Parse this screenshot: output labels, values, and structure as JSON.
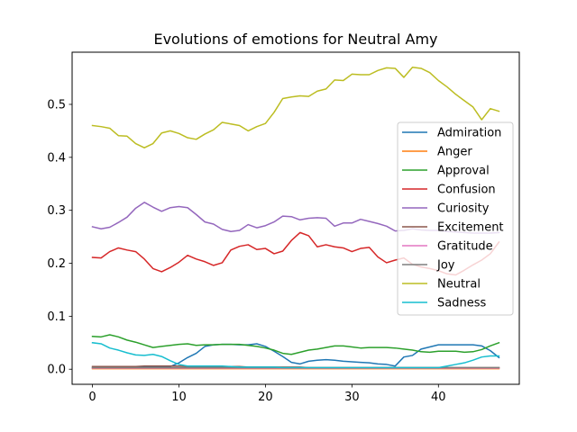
{
  "chart_data": {
    "type": "line",
    "title": "Evolutions of emotions for Neutral Amy",
    "xlabel": "",
    "ylabel": "",
    "xlim": [
      -2.35,
      49.35
    ],
    "ylim": [
      -0.0285,
      0.5985
    ],
    "xticks": [
      0,
      10,
      20,
      30,
      40
    ],
    "yticks": [
      0.0,
      0.1,
      0.2,
      0.3,
      0.4,
      0.5
    ],
    "ytick_labels": [
      "0.0",
      "0.1",
      "0.2",
      "0.3",
      "0.4",
      "0.5"
    ],
    "grid": false,
    "legend_position": "center-right",
    "x": [
      0,
      1,
      2,
      3,
      4,
      5,
      6,
      7,
      8,
      9,
      10,
      11,
      12,
      13,
      14,
      15,
      16,
      17,
      18,
      19,
      20,
      21,
      22,
      23,
      24,
      25,
      26,
      27,
      28,
      29,
      30,
      31,
      32,
      33,
      34,
      35,
      36,
      37,
      38,
      39,
      40,
      41,
      42,
      43,
      44,
      45,
      46,
      47
    ],
    "series": [
      {
        "name": "Admiration",
        "color": "#1f77b4",
        "values": [
          0.003,
          0.003,
          0.003,
          0.003,
          0.003,
          0.003,
          0.004,
          0.004,
          0.004,
          0.005,
          0.012,
          0.022,
          0.03,
          0.043,
          0.046,
          0.047,
          0.047,
          0.046,
          0.046,
          0.048,
          0.043,
          0.034,
          0.024,
          0.013,
          0.01,
          0.015,
          0.017,
          0.018,
          0.017,
          0.015,
          0.014,
          0.013,
          0.012,
          0.01,
          0.009,
          0.006,
          0.023,
          0.026,
          0.038,
          0.042,
          0.046,
          0.046,
          0.046,
          0.046,
          0.046,
          0.044,
          0.035,
          0.022
        ]
      },
      {
        "name": "Anger",
        "color": "#ff7f0e",
        "values": [
          0.001,
          0.001,
          0.001,
          0.001,
          0.001,
          0.001,
          0.001,
          0.001,
          0.001,
          0.001,
          0.001,
          0.001,
          0.001,
          0.001,
          0.001,
          0.001,
          0.001,
          0.001,
          0.001,
          0.001,
          0.001,
          0.001,
          0.001,
          0.001,
          0.001,
          0.001,
          0.001,
          0.001,
          0.001,
          0.001,
          0.001,
          0.001,
          0.001,
          0.001,
          0.001,
          0.001,
          0.001,
          0.001,
          0.001,
          0.001,
          0.001,
          0.001,
          0.001,
          0.001,
          0.001,
          0.001,
          0.001,
          0.001
        ]
      },
      {
        "name": "Approval",
        "color": "#2ca02c",
        "values": [
          0.062,
          0.061,
          0.065,
          0.061,
          0.055,
          0.051,
          0.046,
          0.041,
          0.043,
          0.045,
          0.047,
          0.048,
          0.045,
          0.046,
          0.046,
          0.047,
          0.047,
          0.047,
          0.045,
          0.043,
          0.04,
          0.036,
          0.03,
          0.028,
          0.032,
          0.036,
          0.038,
          0.041,
          0.044,
          0.044,
          0.042,
          0.04,
          0.041,
          0.041,
          0.041,
          0.04,
          0.038,
          0.036,
          0.033,
          0.032,
          0.034,
          0.034,
          0.034,
          0.032,
          0.033,
          0.037,
          0.044,
          0.05
        ]
      },
      {
        "name": "Confusion",
        "color": "#d62728",
        "values": [
          0.211,
          0.21,
          0.222,
          0.229,
          0.225,
          0.222,
          0.208,
          0.19,
          0.184,
          0.192,
          0.202,
          0.215,
          0.208,
          0.203,
          0.196,
          0.201,
          0.225,
          0.232,
          0.235,
          0.226,
          0.228,
          0.218,
          0.223,
          0.243,
          0.258,
          0.252,
          0.231,
          0.235,
          0.231,
          0.229,
          0.222,
          0.228,
          0.23,
          0.212,
          0.201,
          0.206,
          0.21,
          0.198,
          0.193,
          0.19,
          0.186,
          0.18,
          0.178,
          0.187,
          0.197,
          0.206,
          0.218,
          0.24
        ]
      },
      {
        "name": "Curiosity",
        "color": "#9467bd",
        "values": [
          0.269,
          0.265,
          0.268,
          0.277,
          0.287,
          0.304,
          0.315,
          0.306,
          0.298,
          0.305,
          0.307,
          0.305,
          0.292,
          0.278,
          0.274,
          0.264,
          0.26,
          0.262,
          0.273,
          0.267,
          0.271,
          0.278,
          0.289,
          0.288,
          0.282,
          0.285,
          0.286,
          0.285,
          0.27,
          0.276,
          0.276,
          0.283,
          0.279,
          0.275,
          0.27,
          0.261,
          0.262,
          0.265,
          0.263,
          0.262,
          0.262,
          0.26,
          0.259,
          0.258,
          0.257,
          0.257,
          0.257,
          0.258
        ]
      },
      {
        "name": "Excitement",
        "color": "#8c564b",
        "values": [
          0.005,
          0.005,
          0.005,
          0.005,
          0.005,
          0.005,
          0.006,
          0.006,
          0.006,
          0.006,
          0.006,
          0.005,
          0.005,
          0.005,
          0.005,
          0.005,
          0.005,
          0.005,
          0.004,
          0.004,
          0.004,
          0.004,
          0.004,
          0.004,
          0.004,
          0.003,
          0.003,
          0.003,
          0.003,
          0.003,
          0.003,
          0.003,
          0.003,
          0.003,
          0.003,
          0.003,
          0.003,
          0.003,
          0.003,
          0.003,
          0.003,
          0.003,
          0.003,
          0.003,
          0.003,
          0.003,
          0.003,
          0.003
        ]
      },
      {
        "name": "Gratitude",
        "color": "#e377c2",
        "values": [
          0.002,
          0.002,
          0.002,
          0.002,
          0.002,
          0.002,
          0.002,
          0.002,
          0.002,
          0.002,
          0.002,
          0.002,
          0.002,
          0.002,
          0.002,
          0.002,
          0.002,
          0.002,
          0.002,
          0.002,
          0.002,
          0.002,
          0.002,
          0.002,
          0.002,
          0.002,
          0.002,
          0.002,
          0.002,
          0.002,
          0.002,
          0.002,
          0.002,
          0.002,
          0.002,
          0.002,
          0.002,
          0.002,
          0.002,
          0.002,
          0.002,
          0.002,
          0.002,
          0.002,
          0.002,
          0.002,
          0.002,
          0.002
        ]
      },
      {
        "name": "Joy",
        "color": "#7f7f7f",
        "values": [
          0.003,
          0.003,
          0.003,
          0.003,
          0.003,
          0.003,
          0.003,
          0.003,
          0.003,
          0.003,
          0.003,
          0.003,
          0.003,
          0.003,
          0.003,
          0.003,
          0.003,
          0.003,
          0.003,
          0.003,
          0.003,
          0.003,
          0.003,
          0.003,
          0.003,
          0.003,
          0.003,
          0.003,
          0.003,
          0.003,
          0.003,
          0.003,
          0.003,
          0.003,
          0.003,
          0.003,
          0.003,
          0.003,
          0.003,
          0.003,
          0.003,
          0.003,
          0.003,
          0.003,
          0.003,
          0.003,
          0.003,
          0.003
        ]
      },
      {
        "name": "Neutral",
        "color": "#bcbd22",
        "values": [
          0.46,
          0.458,
          0.455,
          0.441,
          0.44,
          0.426,
          0.418,
          0.426,
          0.446,
          0.45,
          0.445,
          0.437,
          0.434,
          0.444,
          0.452,
          0.466,
          0.463,
          0.46,
          0.45,
          0.458,
          0.464,
          0.485,
          0.511,
          0.514,
          0.516,
          0.515,
          0.525,
          0.529,
          0.546,
          0.545,
          0.557,
          0.556,
          0.556,
          0.564,
          0.569,
          0.568,
          0.551,
          0.57,
          0.568,
          0.56,
          0.545,
          0.533,
          0.519,
          0.507,
          0.495,
          0.471,
          0.492,
          0.487
        ]
      },
      {
        "name": "Sadness",
        "color": "#17becf",
        "values": [
          0.05,
          0.048,
          0.04,
          0.036,
          0.031,
          0.027,
          0.026,
          0.028,
          0.024,
          0.016,
          0.009,
          0.006,
          0.006,
          0.006,
          0.006,
          0.006,
          0.005,
          0.004,
          0.004,
          0.004,
          0.004,
          0.004,
          0.003,
          0.003,
          0.003,
          0.003,
          0.003,
          0.003,
          0.003,
          0.003,
          0.003,
          0.003,
          0.003,
          0.003,
          0.003,
          0.003,
          0.003,
          0.003,
          0.003,
          0.003,
          0.003,
          0.006,
          0.009,
          0.012,
          0.017,
          0.023,
          0.025,
          0.025
        ]
      }
    ]
  }
}
